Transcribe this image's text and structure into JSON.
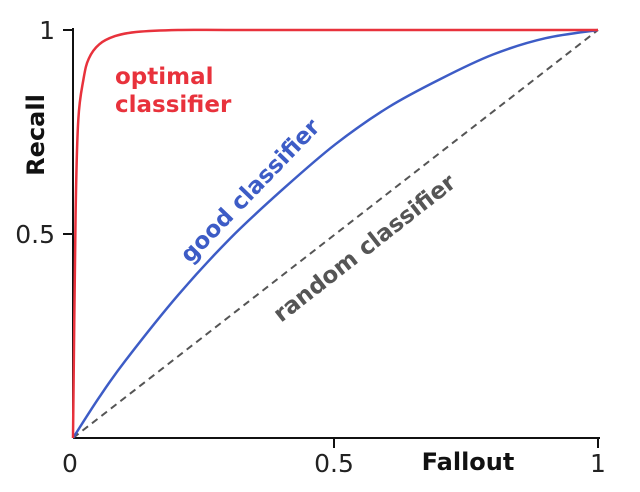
{
  "chart_data": {
    "type": "line",
    "xlabel": "Fallout",
    "ylabel": "Recall",
    "xlim": [
      0,
      1
    ],
    "ylim": [
      0,
      1
    ],
    "x_ticks": [
      "0",
      "0.5",
      "1"
    ],
    "y_ticks": [
      "0.5",
      "1"
    ],
    "grid": false,
    "legend": "none",
    "series": [
      {
        "name": "optimal classifier",
        "label_lines": [
          "optimal",
          "classifier"
        ],
        "color": "#e8323c",
        "style": "solid",
        "x": [
          0,
          0.005,
          0.01,
          0.02,
          0.03,
          0.05,
          0.08,
          0.12,
          0.2,
          0.3,
          0.5,
          0.7,
          1
        ],
        "y": [
          0,
          0.55,
          0.78,
          0.88,
          0.93,
          0.965,
          0.985,
          0.995,
          1.0,
          1.0,
          1.0,
          1.0,
          1.0
        ]
      },
      {
        "name": "good classifier",
        "label_lines": [
          "good classifier"
        ],
        "color": "#3d5cc6",
        "style": "solid",
        "x": [
          0,
          0.05,
          0.1,
          0.2,
          0.3,
          0.4,
          0.5,
          0.6,
          0.7,
          0.8,
          0.9,
          1
        ],
        "y": [
          0,
          0.1,
          0.19,
          0.35,
          0.49,
          0.61,
          0.72,
          0.81,
          0.88,
          0.94,
          0.98,
          1
        ]
      },
      {
        "name": "random classifier",
        "label_lines": [
          "random classifier"
        ],
        "color": "#555555",
        "style": "dashed",
        "x": [
          0,
          1
        ],
        "y": [
          0,
          1
        ]
      }
    ]
  },
  "text": {
    "tick_x_0": "0",
    "tick_x_05": "0.5",
    "tick_x_1": "1",
    "tick_y_05": "0.5",
    "tick_y_1": "1",
    "xlabel": "Fallout",
    "ylabel": "Recall",
    "label_optimal_1": "optimal",
    "label_optimal_2": "classifier",
    "label_good": "good classifier",
    "label_random": "random classifier"
  }
}
